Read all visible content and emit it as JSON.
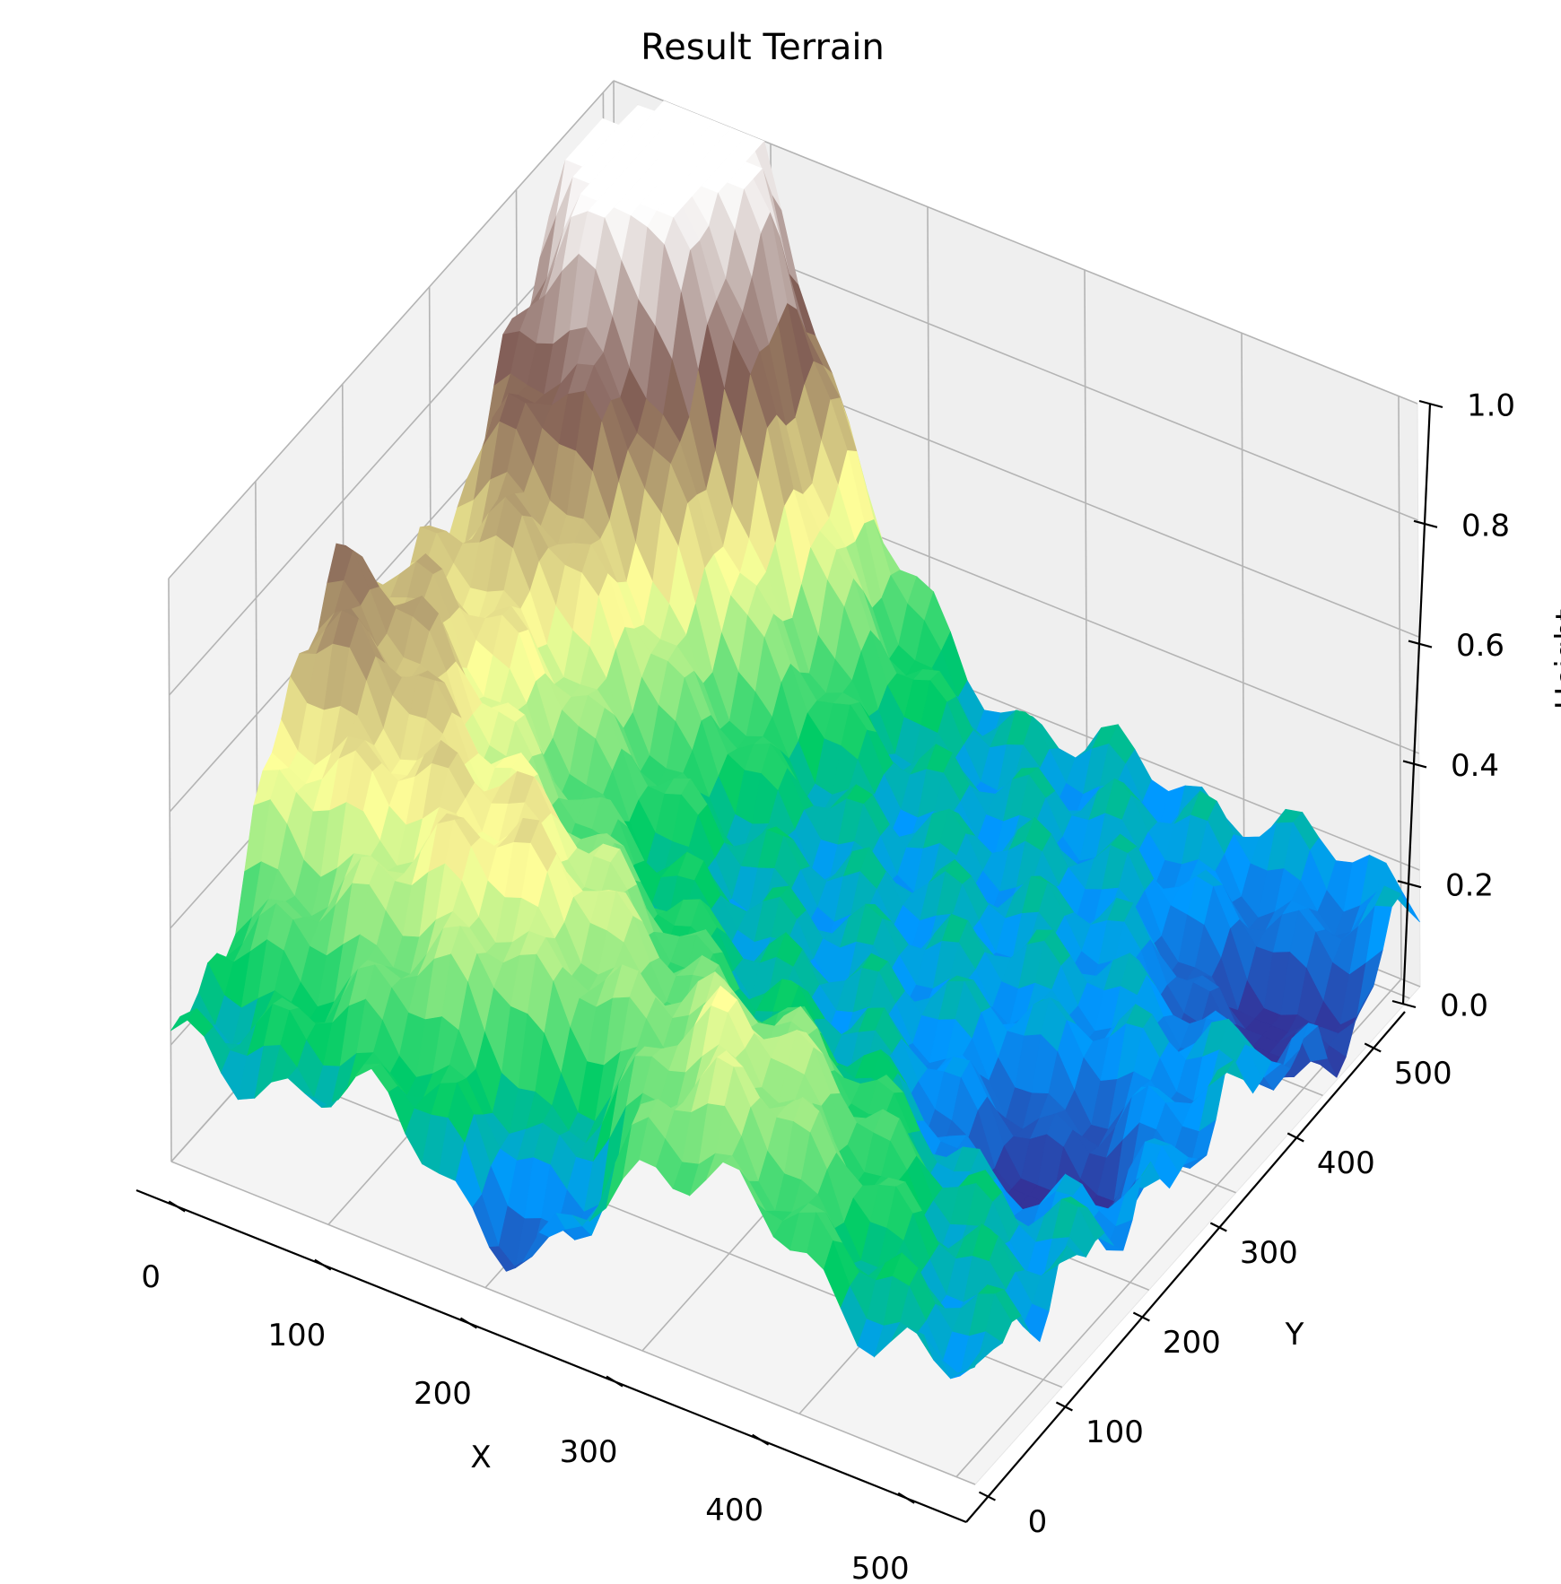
{
  "chart_data": {
    "type": "surface",
    "title": "Result Terrain",
    "xlabel": "X",
    "ylabel": "Y",
    "zlabel": "Height",
    "xlim": [
      0,
      512
    ],
    "ylim": [
      0,
      512
    ],
    "zlim": [
      0,
      1
    ],
    "x_ticks": [
      0,
      100,
      200,
      300,
      400,
      500
    ],
    "y_ticks": [
      0,
      100,
      200,
      300,
      400,
      500
    ],
    "z_ticks": [
      "0.0",
      "0.2",
      "0.4",
      "0.6",
      "0.8",
      "1.0"
    ],
    "colormap": "terrain",
    "grid": true,
    "surface_peaks": [
      {
        "x": 70,
        "y": 490,
        "height": 1.0
      },
      {
        "x": 0,
        "y": 180,
        "height": 0.69
      },
      {
        "x": 320,
        "y": 60,
        "height": 0.5
      },
      {
        "x": 150,
        "y": 120,
        "height": 0.55
      },
      {
        "x": 40,
        "y": 330,
        "height": 0.55
      },
      {
        "x": 30,
        "y": 440,
        "height": 0.58
      }
    ],
    "surface_basins": [
      {
        "x": 230,
        "y": 20,
        "height": 0.0
      },
      {
        "x": 430,
        "y": 230,
        "height": 0.0
      },
      {
        "x": 470,
        "y": 420,
        "height": 0.0
      }
    ]
  }
}
